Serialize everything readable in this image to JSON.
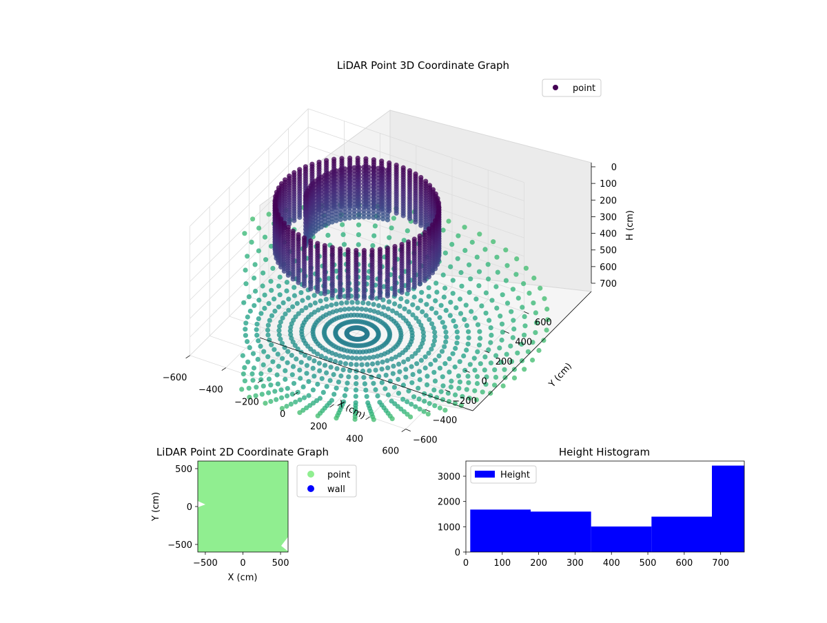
{
  "chart_data": [
    {
      "type": "scatter",
      "title": "LiDAR Point 3D Coordinate Graph",
      "xlabel": "X (cm)",
      "ylabel": "Y (cm)",
      "zlabel": "H (cm)",
      "x_ticks": [
        "−600",
        "−400",
        "−200",
        "0",
        "200",
        "400",
        "600"
      ],
      "y_ticks": [
        "−600",
        "−400",
        "−200",
        "0",
        "200",
        "400",
        "600"
      ],
      "z_ticks": [
        "0",
        "100",
        "200",
        "300",
        "400",
        "500",
        "600",
        "700"
      ],
      "xlim": [
        -600,
        600
      ],
      "ylim": [
        -600,
        600
      ],
      "zlim": [
        0,
        700
      ],
      "z_inverted": true,
      "legend": {
        "label": "point",
        "placement": "top-right"
      },
      "colormap": "viridis",
      "grid": true,
      "structure": {
        "ring_radius_cm": 400,
        "ring_height_range_cm": [
          0,
          260
        ],
        "floor_height_cm": 700,
        "floor_radius_range_cm": [
          50,
          950
        ],
        "angular_rays": 64
      }
    },
    {
      "type": "scatter",
      "title": "LiDAR Point 2D Coordinate Graph",
      "xlabel": "X (cm)",
      "ylabel": "Y (cm)",
      "x_ticks": [
        "−500",
        "0",
        "500"
      ],
      "y_ticks": [
        "500",
        "0",
        "−500"
      ],
      "xlim": [
        -600,
        600
      ],
      "ylim": [
        -600,
        600
      ],
      "series": [
        {
          "name": "point",
          "color": "#90ee90"
        },
        {
          "name": "wall",
          "color": "#0000ff"
        }
      ],
      "legend_placement": "outside-right"
    },
    {
      "type": "bar",
      "title": "Height Histogram",
      "xlabel": "",
      "ylabel": "",
      "bins": [
        {
          "from": 12,
          "to": 178,
          "count": 1680
        },
        {
          "from": 178,
          "to": 344,
          "count": 1600
        },
        {
          "from": 344,
          "to": 510,
          "count": 1010
        },
        {
          "from": 510,
          "to": 676,
          "count": 1400
        },
        {
          "from": 676,
          "to": 765,
          "count": 3420
        }
      ],
      "x_ticks": [
        "0",
        "100",
        "200",
        "300",
        "400",
        "500",
        "600",
        "700"
      ],
      "y_ticks": [
        "0",
        "1000",
        "2000",
        "3000"
      ],
      "xlim": [
        0,
        765
      ],
      "ylim": [
        0,
        3600
      ],
      "legend": {
        "label": "Height",
        "placement": "top-left"
      },
      "bar_color": "#0000ff"
    }
  ]
}
